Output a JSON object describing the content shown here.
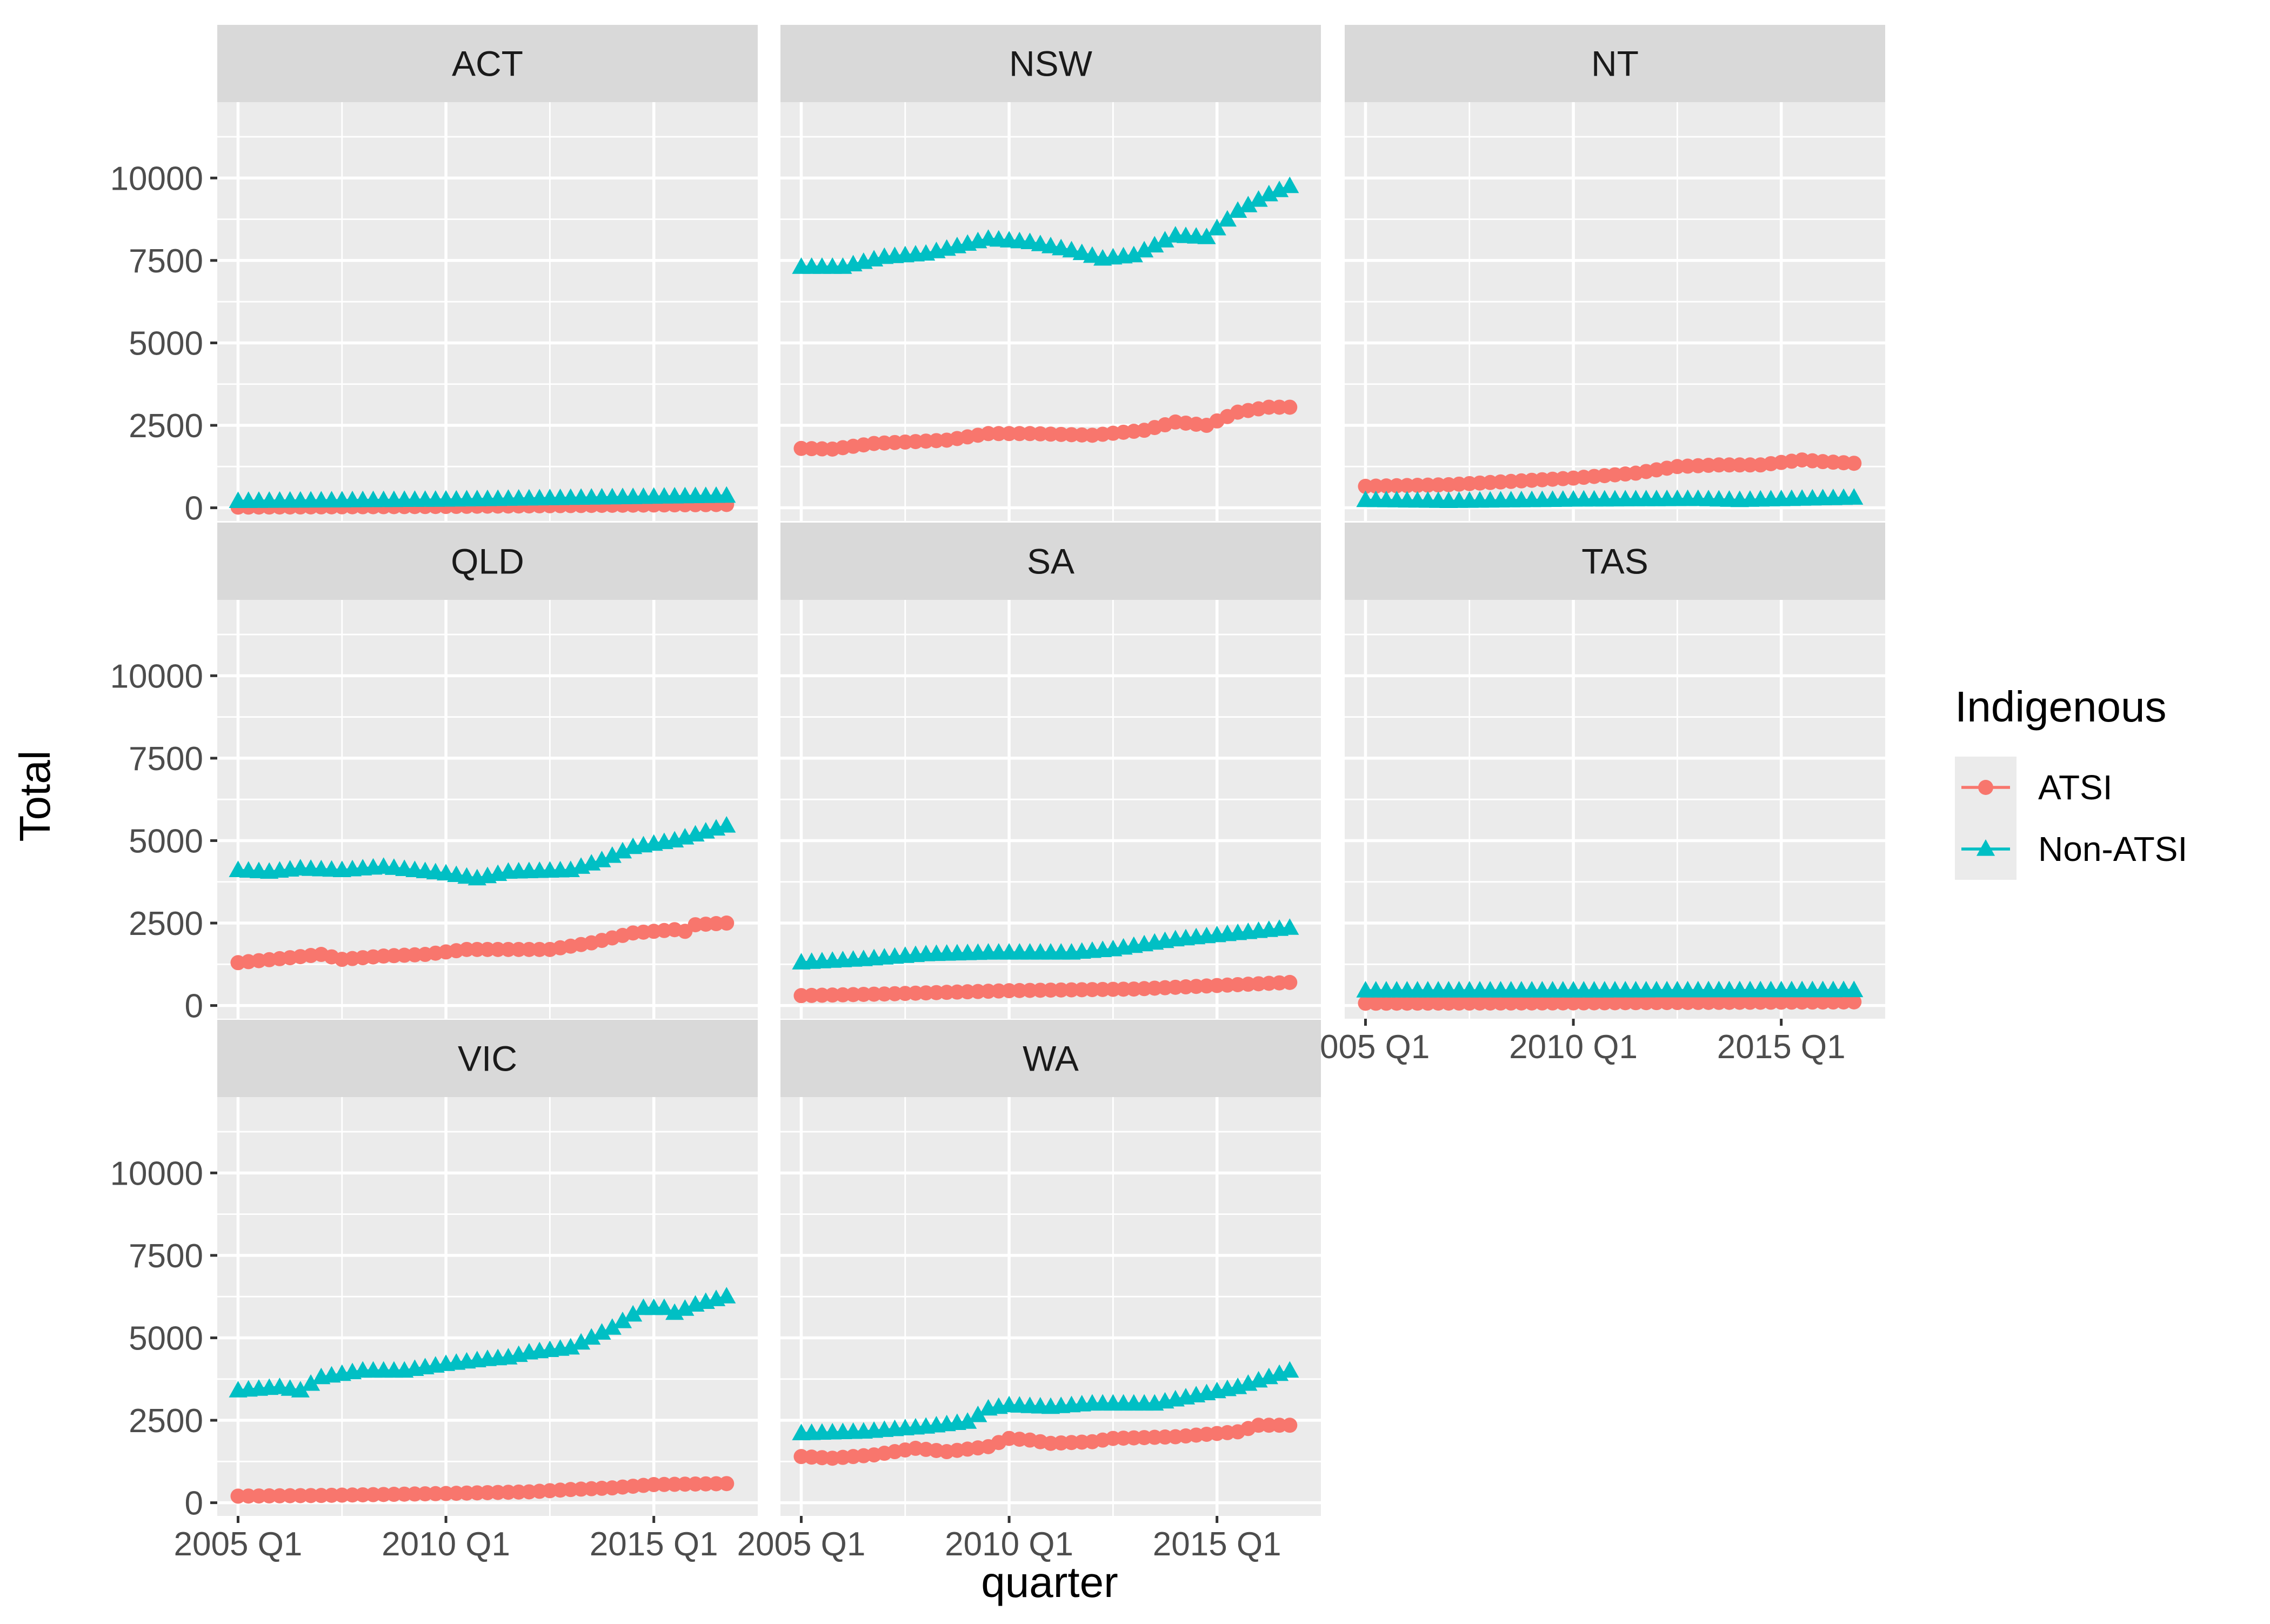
{
  "chart_data": {
    "type": "line",
    "facet_by": "State",
    "facet_layout": "3 columns, shared axes",
    "x_axis": {
      "label": "quarter",
      "ticks": [
        "2005 Q1",
        "2010 Q1",
        "2015 Q1"
      ],
      "range": [
        "2004 Q3",
        "2017 Q3"
      ]
    },
    "y_axis": {
      "label": "Total",
      "ticks": [
        "0",
        "2500",
        "5000",
        "7500",
        "10000"
      ],
      "range": [
        -400,
        12300
      ]
    },
    "grid": true,
    "legend": {
      "title": "Indigenous",
      "position": "right",
      "entries": [
        {
          "name": "ATSI",
          "color": "#F8766D",
          "marker": "circle"
        },
        {
          "name": "Non-ATSI",
          "color": "#00BFC4",
          "marker": "triangle"
        }
      ]
    },
    "x_start": "2005 Q1",
    "x_end": "2016 Q4",
    "series_shape": "quarterly values interpolated between anchor quarters; anchors listed as [quarter, Total]",
    "panels": [
      {
        "state": "ACT",
        "series": [
          {
            "name": "ATSI",
            "anchors": [
              [
                "2005 Q1",
                20
              ],
              [
                "2010 Q1",
                40
              ],
              [
                "2016 Q4",
                100
              ]
            ]
          },
          {
            "name": "Non-ATSI",
            "anchors": [
              [
                "2005 Q1",
                200
              ],
              [
                "2010 Q1",
                240
              ],
              [
                "2016 Q4",
                360
              ]
            ]
          }
        ]
      },
      {
        "state": "NSW",
        "series": [
          {
            "name": "ATSI",
            "anchors": [
              [
                "2005 Q1",
                1800
              ],
              [
                "2005 Q4",
                1780
              ],
              [
                "2006 Q4",
                1950
              ],
              [
                "2008 Q3",
                2050
              ],
              [
                "2009 Q3",
                2250
              ],
              [
                "2010 Q3",
                2250
              ],
              [
                "2012 Q1",
                2200
              ],
              [
                "2013 Q2",
                2350
              ],
              [
                "2014 Q1",
                2600
              ],
              [
                "2014 Q4",
                2500
              ],
              [
                "2015 Q3",
                2900
              ],
              [
                "2016 Q2",
                3050
              ],
              [
                "2016 Q4",
                3050
              ]
            ]
          },
          {
            "name": "Non-ATSI",
            "anchors": [
              [
                "2005 Q1",
                7300
              ],
              [
                "2006 Q1",
                7300
              ],
              [
                "2007 Q1",
                7600
              ],
              [
                "2008 Q1",
                7700
              ],
              [
                "2009 Q3",
                8150
              ],
              [
                "2010 Q3",
                8050
              ],
              [
                "2011 Q3",
                7800
              ],
              [
                "2012 Q2",
                7550
              ],
              [
                "2013 Q1",
                7650
              ],
              [
                "2014 Q1",
                8250
              ],
              [
                "2014 Q4",
                8200
              ],
              [
                "2015 Q3",
                9000
              ],
              [
                "2016 Q2",
                9500
              ],
              [
                "2016 Q4",
                9750
              ]
            ]
          }
        ]
      },
      {
        "state": "NT",
        "series": [
          {
            "name": "ATSI",
            "anchors": [
              [
                "2005 Q1",
                650
              ],
              [
                "2007 Q1",
                700
              ],
              [
                "2008 Q3",
                800
              ],
              [
                "2010 Q1",
                900
              ],
              [
                "2011 Q3",
                1050
              ],
              [
                "2012 Q3",
                1250
              ],
              [
                "2013 Q3",
                1300
              ],
              [
                "2014 Q3",
                1300
              ],
              [
                "2015 Q3",
                1450
              ],
              [
                "2016 Q1",
                1400
              ],
              [
                "2016 Q4",
                1350
              ]
            ]
          },
          {
            "name": "Non-ATSI",
            "anchors": [
              [
                "2005 Q1",
                230
              ],
              [
                "2007 Q1",
                200
              ],
              [
                "2010 Q1",
                240
              ],
              [
                "2013 Q1",
                260
              ],
              [
                "2014 Q1",
                230
              ],
              [
                "2016 Q4",
                300
              ]
            ]
          }
        ]
      },
      {
        "state": "QLD",
        "series": [
          {
            "name": "ATSI",
            "anchors": [
              [
                "2005 Q1",
                1300
              ],
              [
                "2006 Q2",
                1450
              ],
              [
                "2007 Q1",
                1550
              ],
              [
                "2007 Q3",
                1400
              ],
              [
                "2008 Q3",
                1500
              ],
              [
                "2009 Q3",
                1550
              ],
              [
                "2010 Q3",
                1700
              ],
              [
                "2012 Q3",
                1700
              ],
              [
                "2013 Q3",
                1900
              ],
              [
                "2014 Q3",
                2200
              ],
              [
                "2015 Q3",
                2300
              ],
              [
                "2015 Q4",
                2250
              ],
              [
                "2016 Q1",
                2450
              ],
              [
                "2016 Q4",
                2500
              ]
            ]
          },
          {
            "name": "Non-ATSI",
            "anchors": [
              [
                "2005 Q1",
                4100
              ],
              [
                "2005 Q4",
                4050
              ],
              [
                "2006 Q3",
                4150
              ],
              [
                "2007 Q3",
                4100
              ],
              [
                "2008 Q3",
                4200
              ],
              [
                "2010 Q1",
                4000
              ],
              [
                "2010 Q4",
                3850
              ],
              [
                "2011 Q3",
                4050
              ],
              [
                "2013 Q1",
                4100
              ],
              [
                "2013 Q4",
                4400
              ],
              [
                "2014 Q3",
                4800
              ],
              [
                "2015 Q3",
                5000
              ],
              [
                "2016 Q4",
                5450
              ]
            ]
          }
        ]
      },
      {
        "state": "SA",
        "series": [
          {
            "name": "ATSI",
            "anchors": [
              [
                "2005 Q1",
                300
              ],
              [
                "2007 Q1",
                350
              ],
              [
                "2010 Q1",
                450
              ],
              [
                "2013 Q1",
                500
              ],
              [
                "2016 Q4",
                700
              ]
            ]
          },
          {
            "name": "Non-ATSI",
            "anchors": [
              [
                "2005 Q1",
                1300
              ],
              [
                "2006 Q3",
                1400
              ],
              [
                "2008 Q1",
                1550
              ],
              [
                "2009 Q3",
                1600
              ],
              [
                "2011 Q3",
                1600
              ],
              [
                "2012 Q3",
                1700
              ],
              [
                "2014 Q1",
                2000
              ],
              [
                "2016 Q4",
                2350
              ]
            ]
          }
        ]
      },
      {
        "state": "TAS",
        "series": [
          {
            "name": "ATSI",
            "anchors": [
              [
                "2005 Q1",
                70
              ],
              [
                "2010 Q1",
                80
              ],
              [
                "2016 Q4",
                110
              ]
            ]
          },
          {
            "name": "Non-ATSI",
            "anchors": [
              [
                "2005 Q1",
                450
              ],
              [
                "2010 Q1",
                450
              ],
              [
                "2016 Q4",
                460
              ]
            ]
          }
        ]
      },
      {
        "state": "VIC",
        "series": [
          {
            "name": "ATSI",
            "anchors": [
              [
                "2005 Q1",
                200
              ],
              [
                "2007 Q1",
                220
              ],
              [
                "2010 Q1",
                280
              ],
              [
                "2012 Q1",
                330
              ],
              [
                "2013 Q1",
                400
              ],
              [
                "2014 Q1",
                450
              ],
              [
                "2015 Q1",
                550
              ],
              [
                "2016 Q4",
                580
              ]
            ]
          },
          {
            "name": "Non-ATSI",
            "anchors": [
              [
                "2005 Q1",
                3400
              ],
              [
                "2006 Q1",
                3500
              ],
              [
                "2006 Q3",
                3400
              ],
              [
                "2007 Q1",
                3800
              ],
              [
                "2008 Q1",
                4000
              ],
              [
                "2009 Q1",
                4000
              ],
              [
                "2010 Q1",
                4200
              ],
              [
                "2011 Q1",
                4350
              ],
              [
                "2011 Q3",
                4400
              ],
              [
                "2012 Q1",
                4550
              ],
              [
                "2013 Q1",
                4700
              ],
              [
                "2014 Q1",
                5300
              ],
              [
                "2014 Q4",
                5900
              ],
              [
                "2015 Q2",
                5900
              ],
              [
                "2015 Q3",
                5750
              ],
              [
                "2016 Q1",
                6000
              ],
              [
                "2016 Q4",
                6250
              ]
            ]
          }
        ]
      },
      {
        "state": "WA",
        "series": [
          {
            "name": "ATSI",
            "anchors": [
              [
                "2005 Q1",
                1400
              ],
              [
                "2005 Q4",
                1350
              ],
              [
                "2006 Q4",
                1450
              ],
              [
                "2007 Q4",
                1650
              ],
              [
                "2008 Q3",
                1550
              ],
              [
                "2009 Q3",
                1700
              ],
              [
                "2010 Q1",
                1950
              ],
              [
                "2010 Q3",
                1900
              ],
              [
                "2011 Q1",
                1800
              ],
              [
                "2012 Q1",
                1850
              ],
              [
                "2012 Q3",
                1950
              ],
              [
                "2014 Q1",
                2000
              ],
              [
                "2015 Q1",
                2100
              ],
              [
                "2015 Q3",
                2150
              ],
              [
                "2016 Q1",
                2350
              ],
              [
                "2016 Q4",
                2350
              ]
            ]
          },
          {
            "name": "Non-ATSI",
            "anchors": [
              [
                "2005 Q1",
                2100
              ],
              [
                "2006 Q3",
                2150
              ],
              [
                "2008 Q1",
                2300
              ],
              [
                "2009 Q1",
                2450
              ],
              [
                "2009 Q3",
                2850
              ],
              [
                "2010 Q1",
                2950
              ],
              [
                "2011 Q1",
                2900
              ],
              [
                "2012 Q1",
                3000
              ],
              [
                "2013 Q3",
                3000
              ],
              [
                "2014 Q3",
                3250
              ],
              [
                "2015 Q3",
                3500
              ],
              [
                "2016 Q4",
                4000
              ]
            ]
          }
        ]
      }
    ]
  }
}
